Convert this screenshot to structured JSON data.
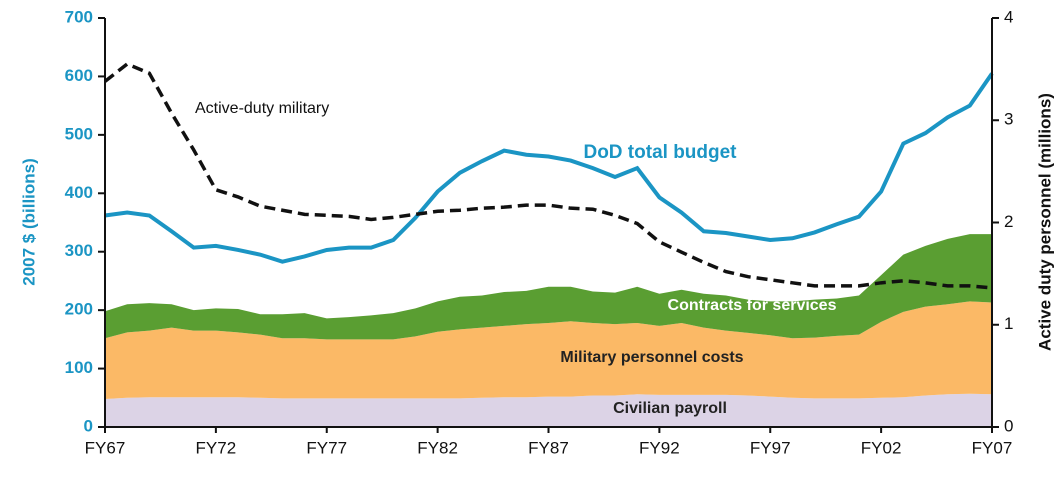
{
  "chart_data": {
    "type": "area",
    "categories": [
      "FY67",
      null,
      null,
      null,
      null,
      "FY72",
      null,
      null,
      null,
      null,
      "FY77",
      null,
      null,
      null,
      null,
      "FY82",
      null,
      null,
      null,
      null,
      "FY87",
      null,
      null,
      null,
      null,
      "FY92",
      null,
      null,
      null,
      null,
      "FY97",
      null,
      null,
      null,
      null,
      "FY02",
      null,
      null,
      null,
      null,
      "FY07"
    ],
    "ylabel": "2007 $ (billions)",
    "y2label": "Active duty personnel (millions)",
    "ylim": [
      0,
      700
    ],
    "yticks": [
      0,
      100,
      200,
      300,
      400,
      500,
      600,
      700
    ],
    "y2lim": [
      0,
      4
    ],
    "y2ticks": [
      0,
      1,
      2,
      3,
      4
    ],
    "series": [
      {
        "name": "Civilian payroll",
        "type": "area",
        "color": "#dcd3e6",
        "values": [
          48,
          50,
          51,
          51,
          51,
          51,
          51,
          50,
          49,
          49,
          49,
          49,
          49,
          49,
          49,
          49,
          49,
          50,
          51,
          51,
          52,
          52,
          54,
          54,
          56,
          55,
          55,
          55,
          55,
          54,
          52,
          50,
          49,
          49,
          49,
          50,
          51,
          54,
          56,
          57,
          56
        ]
      },
      {
        "name": "Military personnel costs",
        "type": "area",
        "color": "#fbb966",
        "values": [
          104,
          112,
          114,
          119,
          114,
          114,
          111,
          108,
          103,
          103,
          101,
          101,
          101,
          101,
          106,
          114,
          118,
          120,
          122,
          125,
          126,
          129,
          124,
          122,
          122,
          118,
          123,
          115,
          110,
          107,
          105,
          102,
          104,
          107,
          109,
          130,
          146,
          152,
          154,
          158,
          157
        ]
      },
      {
        "name": "Contracts for services",
        "type": "area",
        "color": "#5a9e32",
        "values": [
          46,
          48,
          47,
          40,
          35,
          38,
          40,
          35,
          41,
          43,
          36,
          38,
          41,
          45,
          48,
          52,
          56,
          55,
          58,
          57,
          62,
          59,
          54,
          54,
          62,
          55,
          57,
          58,
          60,
          57,
          58,
          63,
          65,
          64,
          67,
          80,
          98,
          104,
          112,
          115,
          117
        ]
      },
      {
        "name": "DoD total budget",
        "type": "line",
        "color": "#1b95c4",
        "values": [
          362,
          367,
          362,
          335,
          307,
          310,
          303,
          295,
          283,
          292,
          303,
          307,
          307,
          320,
          358,
          403,
          435,
          455,
          473,
          466,
          463,
          456,
          443,
          428,
          443,
          393,
          367,
          335,
          332,
          326,
          320,
          323,
          333,
          347,
          360,
          403,
          485,
          503,
          530,
          550,
          605
        ]
      },
      {
        "name": "Active-duty military",
        "type": "line",
        "color": "#111111",
        "dashed": true,
        "axis": "y2",
        "values": [
          3.38,
          3.55,
          3.46,
          3.07,
          2.71,
          2.32,
          2.25,
          2.16,
          2.12,
          2.08,
          2.07,
          2.06,
          2.03,
          2.05,
          2.08,
          2.11,
          2.12,
          2.14,
          2.15,
          2.17,
          2.17,
          2.14,
          2.13,
          2.07,
          1.99,
          1.81,
          1.71,
          1.61,
          1.52,
          1.47,
          1.44,
          1.41,
          1.38,
          1.38,
          1.38,
          1.41,
          1.43,
          1.41,
          1.38,
          1.38,
          1.36
        ]
      }
    ]
  }
}
